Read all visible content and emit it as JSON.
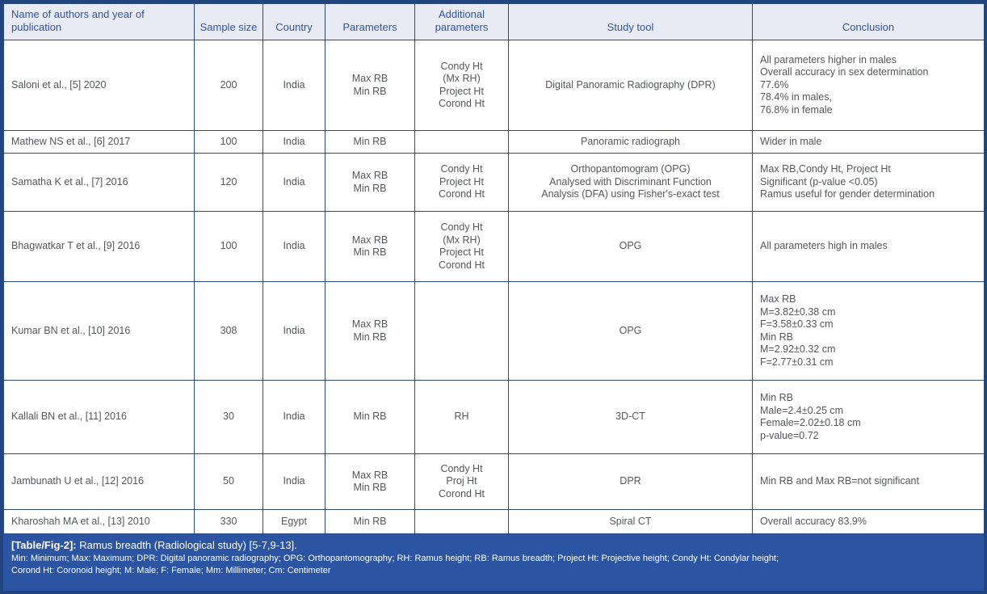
{
  "colors": {
    "accent_blue": "#2b55a3",
    "frame_border": "#21457c",
    "grid_line": "#2a4a80",
    "header_bg": "#e9ebf4",
    "header_text": "#2d55a4",
    "body_text": "#54565b",
    "caption_text": "#ffffff"
  },
  "table": {
    "columns": [
      "Name of authors and year of publication",
      "Sample size",
      "Country",
      "Parameters",
      "Additional parameters",
      "Study tool",
      "Conclusion"
    ],
    "rows": [
      {
        "author": "Saloni et al., [5] 2020",
        "sample_size": "200",
        "country": "India",
        "parameters": [
          "Max RB",
          "Min RB"
        ],
        "additional_parameters": [
          "Condy Ht",
          "(Mx RH)",
          "Project Ht",
          "Corond Ht"
        ],
        "study_tool": [
          "Digital Panoramic Radiography (DPR)"
        ],
        "conclusion": [
          "All parameters higher in males",
          "Overall accuracy in sex determination",
          "77.6%",
          "78.4% in males,",
          "76.8% in female"
        ]
      },
      {
        "author": "Mathew NS et al., [6] 2017",
        "sample_size": "100",
        "country": "India",
        "parameters": [
          "Min RB"
        ],
        "additional_parameters": [],
        "study_tool": [
          "Panoramic radiograph"
        ],
        "conclusion": [
          "Wider in male"
        ]
      },
      {
        "author": "Samatha K et al., [7] 2016",
        "sample_size": "120",
        "country": "India",
        "parameters": [
          "Max RB",
          "Min RB"
        ],
        "additional_parameters": [
          "Condy Ht",
          "Project Ht",
          "Corond Ht"
        ],
        "study_tool": [
          "Orthopantomogram (OPG)",
          "Analysed with Discriminant Function",
          "Analysis (DFA) using Fisher's-exact test"
        ],
        "conclusion": [
          "Max RB,Condy Ht, Project Ht",
          "Significant (p-value <0.05)",
          "Ramus useful for gender determination"
        ]
      },
      {
        "author": "Bhagwatkar T et al., [9] 2016",
        "sample_size": "100",
        "country": "India",
        "parameters": [
          "Max RB",
          "Min RB"
        ],
        "additional_parameters": [
          "Condy Ht",
          "(Mx RH)",
          "Project Ht",
          "Corond Ht"
        ],
        "study_tool": [
          "OPG"
        ],
        "conclusion": [
          "All parameters high in males"
        ]
      },
      {
        "author": "Kumar BN et al., [10] 2016",
        "sample_size": "308",
        "country": "India",
        "parameters": [
          "Max RB",
          "Min RB"
        ],
        "additional_parameters": [],
        "study_tool": [
          "OPG"
        ],
        "conclusion": [
          "Max RB",
          "M=3.82±0.38 cm",
          "F=3.58±0.33 cm",
          "Min RB",
          "M=2.92±0.32 cm",
          "F=2.77±0.31 cm"
        ]
      },
      {
        "author": "Kallali BN et al., [11] 2016",
        "sample_size": "30",
        "country": "India",
        "parameters": [
          "Min RB"
        ],
        "additional_parameters": [
          "RH"
        ],
        "study_tool": [
          "3D-CT"
        ],
        "conclusion": [
          "Min RB",
          "Male=2.4±0.25 cm",
          "Female=2.02±0.18 cm",
          "p-value=0.72"
        ]
      },
      {
        "author": "Jambunath U et al., [12] 2016",
        "sample_size": "50",
        "country": "India",
        "parameters": [
          "Max RB",
          "Min RB"
        ],
        "additional_parameters": [
          "Condy Ht",
          "Proj Ht",
          "Corond Ht"
        ],
        "study_tool": [
          "DPR"
        ],
        "conclusion": [
          "Min RB and Max RB=not significant"
        ]
      },
      {
        "author": "Kharoshah MA et al., [13] 2010",
        "sample_size": "330",
        "country": "Egypt",
        "parameters": [
          "Min RB"
        ],
        "additional_parameters": [],
        "study_tool": [
          "Spiral CT"
        ],
        "conclusion": [
          "Overall accuracy 83.9%"
        ]
      }
    ]
  },
  "caption": {
    "bold": "[Table/Fig-2]:",
    "rest": " Ramus breadth (Radiological study) [5-7,9-13].",
    "abbr_line1": "Min: Minimum; Max: Maximum; DPR: Digital panoramic radiography; OPG: Orthopantomography; RH: Ramus height; RB: Ramus breadth; Project Ht: Projective height; Condy Ht: Condylar height;",
    "abbr_line2": "Corond Ht: Coronoid height; M: Male; F: Female; Mm: Millimeter; Cm: Centimeter"
  }
}
